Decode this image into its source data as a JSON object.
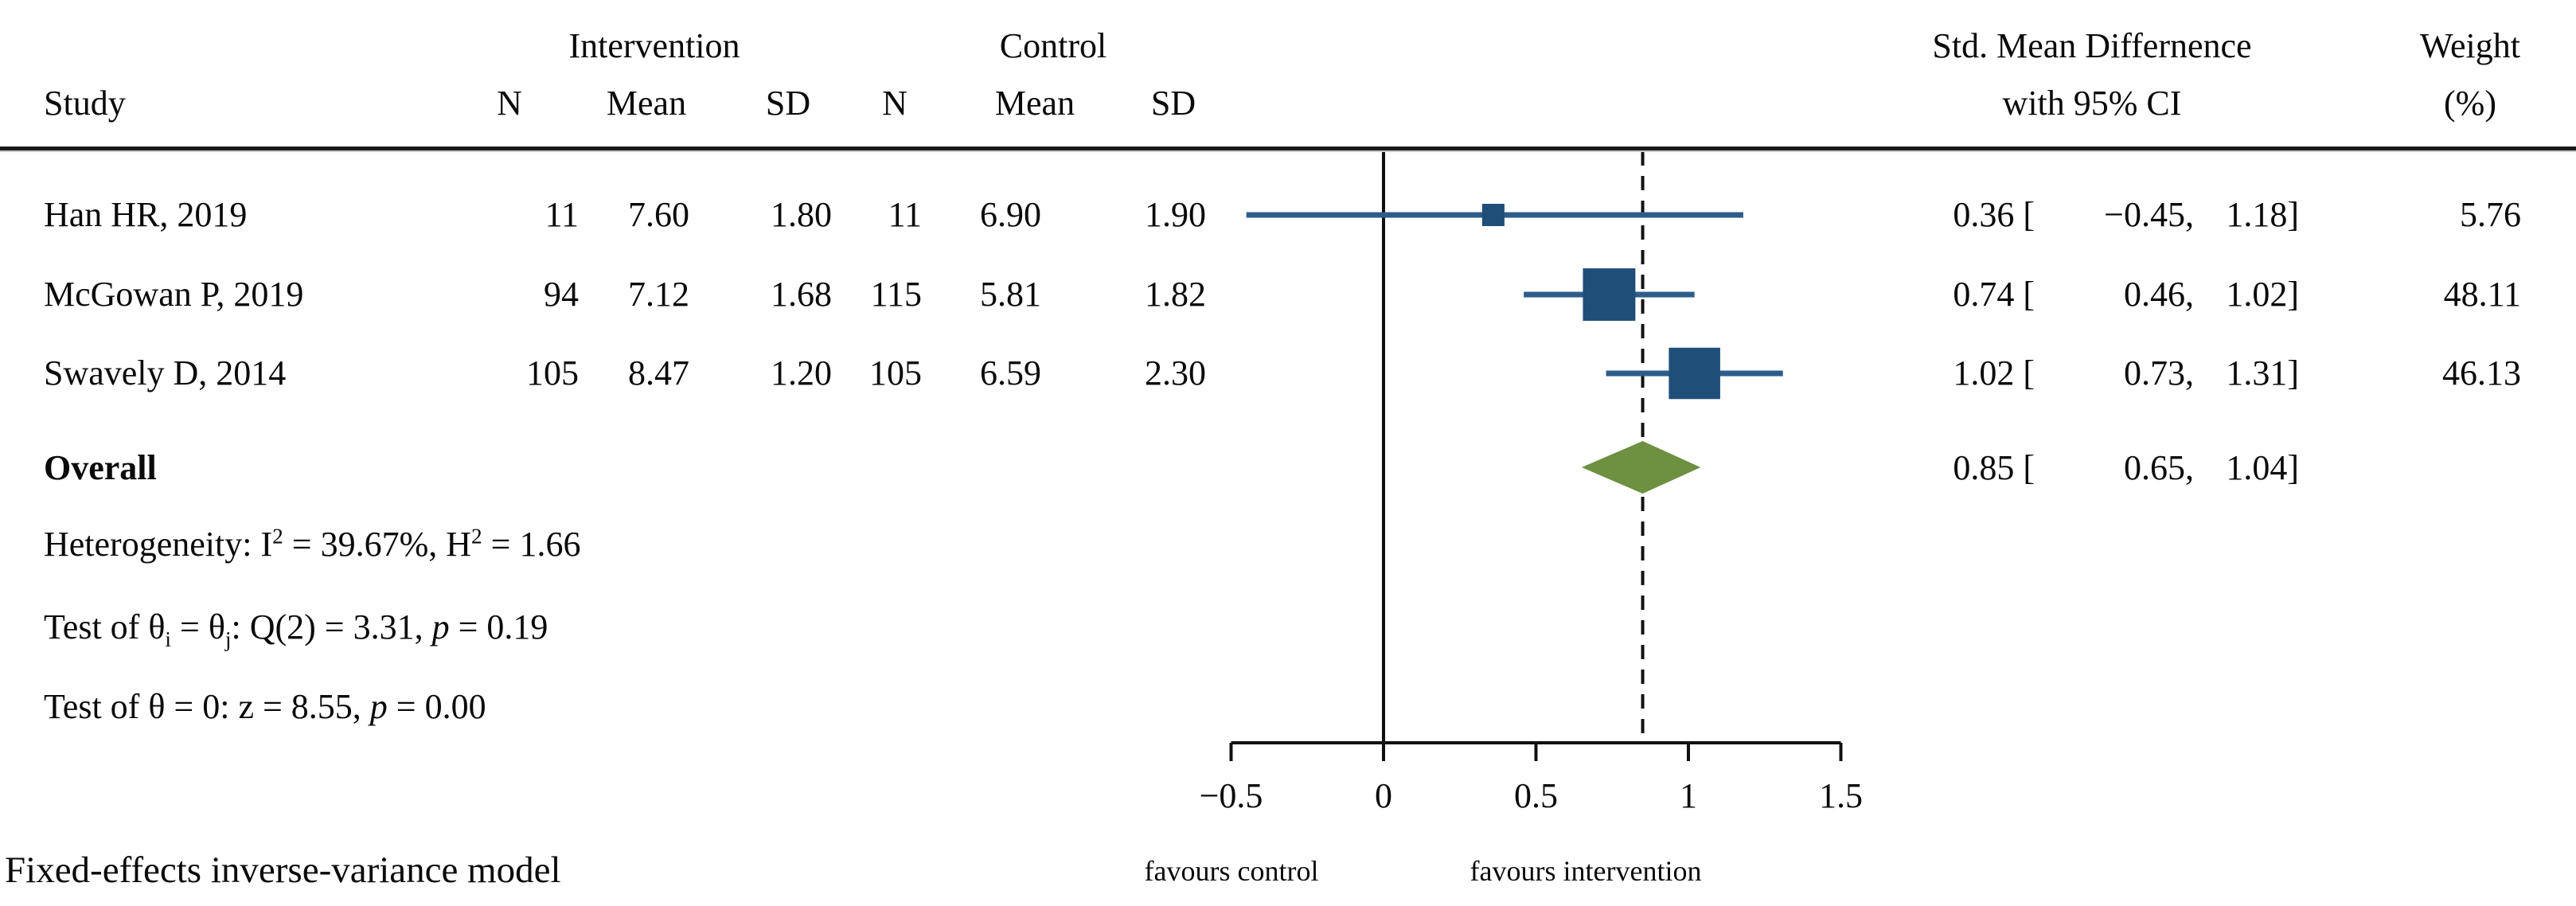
{
  "header": {
    "study": "Study",
    "intervention": "Intervention",
    "control": "Control",
    "n": "N",
    "mean": "Mean",
    "sd": "SD",
    "effect_line1": "Std. Mean Differnence",
    "effect_line2": "with 95% CI",
    "weight_line1": "Weight",
    "weight_line2": "(%)"
  },
  "rows": [
    {
      "study": "Han HR, 2019",
      "n_int": "11",
      "mean_int": "7.60",
      "sd_int": "1.80",
      "n_ctl": "11",
      "mean_ctl": "6.90",
      "sd_ctl": "1.90",
      "est_cell": "0.36 [",
      "lo_cell": "−0.45,",
      "hi_cell": "1.18]",
      "weight": "5.76"
    },
    {
      "study": "McGowan P, 2019",
      "n_int": "94",
      "mean_int": "7.12",
      "sd_int": "1.68",
      "n_ctl": "115",
      "mean_ctl": "5.81",
      "sd_ctl": "1.82",
      "est_cell": "0.74 [",
      "lo_cell": "0.46,",
      "hi_cell": "1.02]",
      "weight": "48.11"
    },
    {
      "study": "Swavely D, 2014",
      "n_int": "105",
      "mean_int": "8.47",
      "sd_int": "1.20",
      "n_ctl": "105",
      "mean_ctl": "6.59",
      "sd_ctl": "2.30",
      "est_cell": "1.02 [",
      "lo_cell": "0.73,",
      "hi_cell": "1.31]",
      "weight": "46.13"
    }
  ],
  "overall": {
    "label": "Overall",
    "est_cell": "0.85 [",
    "lo_cell": "0.65,",
    "hi_cell": "1.04]"
  },
  "stats": {
    "heterogeneity_html": "Heterogeneity: I<sup>2</sup> = 39.67%, H<sup>2</sup> = 1.66",
    "test_q_html": "Test of θ<sub>i</sub> = θ<sub>j</sub>: Q(2) = 3.31, <i>p</i> = 0.19",
    "test_z_html": "Test of θ = 0: z = 8.55, <i>p</i> = 0.00"
  },
  "footer": {
    "model": "Fixed-effects inverse-variance model",
    "favours_left": "favours control",
    "favours_right": "favours intervention"
  },
  "colors": {
    "marker": "#1f4e79",
    "ci_line": "#2e5c8a",
    "diamond": "#6d9041",
    "line": "#111111"
  },
  "chart_data": {
    "type": "forest",
    "title": "Std. Mean Differnence with 95% CI",
    "x_axis": {
      "min": -0.5,
      "max": 1.5,
      "ticks": [
        -0.5,
        0,
        0.5,
        1,
        1.5
      ],
      "tick_labels": [
        "−0.5",
        "0",
        "0.5",
        "1",
        "1.5"
      ],
      "ref_line": 0,
      "overall_dashed_line": 0.85
    },
    "studies": [
      {
        "name": "Han HR, 2019",
        "n_intervention": 11,
        "mean_intervention": 7.6,
        "sd_intervention": 1.8,
        "n_control": 11,
        "mean_control": 6.9,
        "sd_control": 1.9,
        "smd": 0.36,
        "ci_low": -0.45,
        "ci_high": 1.18,
        "weight_pct": 5.76
      },
      {
        "name": "McGowan P, 2019",
        "n_intervention": 94,
        "mean_intervention": 7.12,
        "sd_intervention": 1.68,
        "n_control": 115,
        "mean_control": 5.81,
        "sd_control": 1.82,
        "smd": 0.74,
        "ci_low": 0.46,
        "ci_high": 1.02,
        "weight_pct": 48.11
      },
      {
        "name": "Swavely D, 2014",
        "n_intervention": 105,
        "mean_intervention": 8.47,
        "sd_intervention": 1.2,
        "n_control": 105,
        "mean_control": 6.59,
        "sd_control": 2.3,
        "smd": 1.02,
        "ci_low": 0.73,
        "ci_high": 1.31,
        "weight_pct": 46.13
      }
    ],
    "overall": {
      "smd": 0.85,
      "ci_low": 0.65,
      "ci_high": 1.04
    },
    "heterogeneity": {
      "I2_pct": 39.67,
      "H2": 1.66,
      "Q_df": 2,
      "Q": 3.31,
      "p_Q": 0.19,
      "z": 8.55,
      "p_z": 0.0
    },
    "model": "Fixed-effects inverse-variance model",
    "favours": {
      "left": "favours control",
      "right": "favours intervention"
    }
  }
}
